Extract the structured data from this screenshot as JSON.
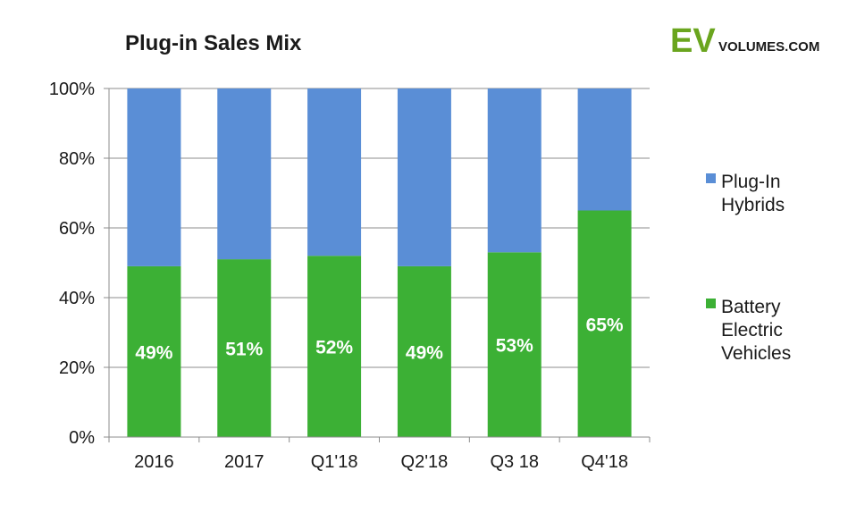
{
  "logo": {
    "primary": "EV",
    "secondary": "VOLUMES.COM",
    "color": "#6aa51e"
  },
  "chart_data": {
    "type": "bar",
    "stacked": true,
    "title": "Plug-in Sales Mix",
    "xlabel": "",
    "ylabel": "",
    "ylim": [
      0,
      100
    ],
    "yticks": [
      "0%",
      "20%",
      "40%",
      "60%",
      "80%",
      "100%"
    ],
    "categories": [
      "2016",
      "2017",
      "Q1'18",
      "Q2'18",
      "Q3 18",
      "Q4'18"
    ],
    "series": [
      {
        "name": "Battery Electric Vehicles",
        "legend_lines": [
          "Battery",
          "Electric",
          "Vehicles"
        ],
        "color": "#3cb035",
        "values": [
          49,
          51,
          52,
          49,
          53,
          65
        ],
        "data_labels": [
          "49%",
          "51%",
          "52%",
          "49%",
          "53%",
          "65%"
        ]
      },
      {
        "name": "Plug-In Hybrids",
        "legend_lines": [
          "Plug-In",
          "Hybrids"
        ],
        "color": "#5a8ed6",
        "values": [
          51,
          49,
          48,
          51,
          47,
          35
        ]
      }
    ],
    "legend_position": "right",
    "grid": true
  }
}
